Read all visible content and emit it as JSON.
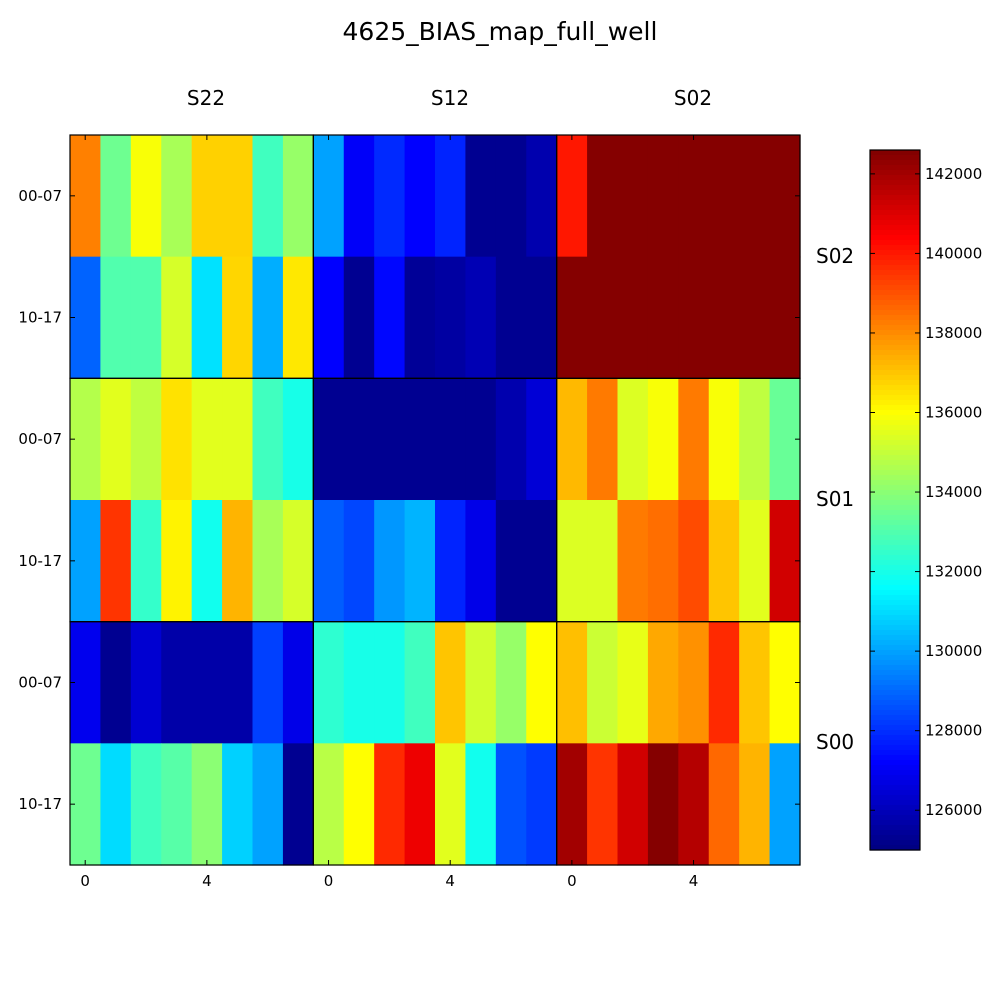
{
  "chart_data": {
    "type": "heatmap",
    "title": "4625_BIAS_map_full_well",
    "column_labels": [
      "S22",
      "S12",
      "S02"
    ],
    "row_labels": [
      "S02",
      "S01",
      "S00"
    ],
    "xticks": [
      "0",
      "4"
    ],
    "yticks": [
      "00-07",
      "10-17"
    ],
    "colorbar": {
      "colormap": "jet",
      "range": [
        125000,
        142600
      ],
      "ticks": [
        126000,
        128000,
        130000,
        132000,
        134000,
        136000,
        138000,
        140000,
        142000
      ],
      "tick_labels": [
        "126000",
        "128000",
        "130000",
        "132000",
        "134000",
        "136000",
        "138000",
        "140000",
        "142000"
      ]
    },
    "panels": [
      {
        "row": "S02",
        "col": "S22",
        "values": [
          [
            138200,
            133500,
            135900,
            134500,
            136800,
            136800,
            132700,
            134200
          ],
          [
            128900,
            133000,
            133000,
            135300,
            131100,
            136700,
            130200,
            136400
          ]
        ]
      },
      {
        "row": "S02",
        "col": "S12",
        "values": [
          [
            130000,
            127100,
            127900,
            127200,
            127800,
            125300,
            125300,
            125800
          ],
          [
            127200,
            125300,
            127300,
            125400,
            125600,
            125900,
            125300,
            125300
          ]
        ]
      },
      {
        "row": "S02",
        "col": "S02",
        "values": [
          [
            140000,
            142500,
            142500,
            142500,
            142500,
            142500,
            142500,
            142500
          ],
          [
            142500,
            142500,
            142500,
            142500,
            142500,
            142500,
            142500,
            142500
          ]
        ]
      },
      {
        "row": "S01",
        "col": "S22",
        "values": [
          [
            134700,
            135500,
            134900,
            136500,
            135500,
            135500,
            132700,
            132000
          ],
          [
            130000,
            139500,
            132500,
            136200,
            131900,
            137300,
            134500,
            135300
          ]
        ]
      },
      {
        "row": "S01",
        "col": "S12",
        "values": [
          [
            125300,
            125300,
            125300,
            125300,
            125300,
            125300,
            125800,
            126500
          ],
          [
            128800,
            128400,
            129800,
            130300,
            127800,
            126800,
            125300,
            125300
          ]
        ]
      },
      {
        "row": "S01",
        "col": "S02",
        "values": [
          [
            137200,
            138300,
            135400,
            135900,
            138300,
            135900,
            134900,
            133400
          ],
          [
            135400,
            135400,
            138300,
            138500,
            139100,
            137000,
            135500,
            141200
          ]
        ]
      },
      {
        "row": "S00",
        "col": "S22",
        "values": [
          [
            126900,
            125300,
            126400,
            125700,
            125700,
            125700,
            128300,
            126800
          ],
          [
            133500,
            131000,
            132700,
            133100,
            134000,
            130800,
            130000,
            125300
          ]
        ]
      },
      {
        "row": "S00",
        "col": "S12",
        "values": [
          [
            132400,
            132000,
            132000,
            132700,
            137000,
            135200,
            134200,
            136000
          ],
          [
            134800,
            136000,
            139700,
            140700,
            135500,
            131900,
            128600,
            128200
          ]
        ]
      },
      {
        "row": "S00",
        "col": "S02",
        "values": [
          [
            137100,
            135100,
            135600,
            137500,
            137900,
            139700,
            137000,
            136000
          ],
          [
            142000,
            139500,
            141200,
            142500,
            141700,
            138600,
            137300,
            130000
          ]
        ]
      }
    ]
  }
}
